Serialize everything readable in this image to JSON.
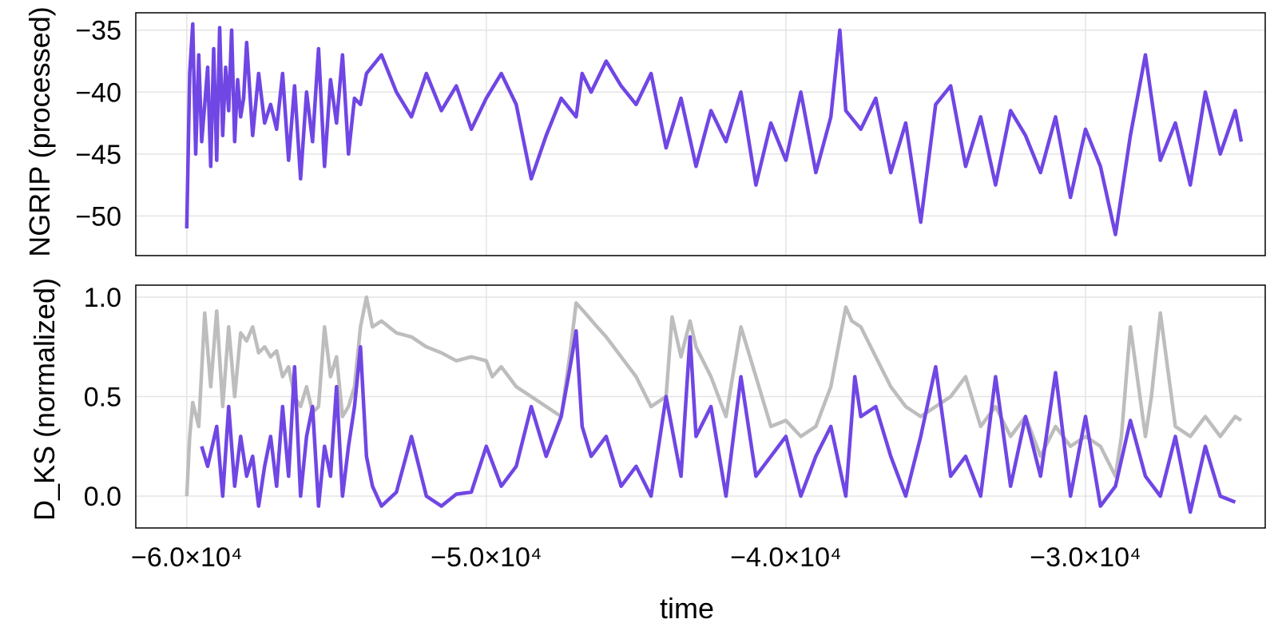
{
  "colors": {
    "primary": "#7046e4",
    "secondary": "#bdbdbd",
    "grid": "#e4e4e4"
  },
  "chart_data": [
    {
      "type": "line",
      "ylabel": "NGRIP (processed)",
      "xlim": [
        -61700,
        -24000
      ],
      "ylim": [
        -53.2,
        -33.6
      ],
      "yticks": [
        -50,
        -45,
        -40,
        -35
      ],
      "ytick_labels": [
        "−50",
        "−45",
        "−40",
        "−35"
      ],
      "xticks": [
        -60000,
        -50000,
        -40000,
        -30000
      ],
      "grid": true,
      "series": [
        {
          "color": "#7046e4",
          "x": [
            -60000,
            -59900,
            -59800,
            -59700,
            -59600,
            -59500,
            -59400,
            -59300,
            -59200,
            -59100,
            -59000,
            -58900,
            -58800,
            -58700,
            -58600,
            -58500,
            -58400,
            -58300,
            -58200,
            -58100,
            -58000,
            -57800,
            -57600,
            -57400,
            -57200,
            -57000,
            -56800,
            -56600,
            -56400,
            -56200,
            -56000,
            -55800,
            -55600,
            -55400,
            -55200,
            -55000,
            -54800,
            -54600,
            -54400,
            -54200,
            -54000,
            -53500,
            -53000,
            -52500,
            -52000,
            -51500,
            -51000,
            -50500,
            -50000,
            -49500,
            -49000,
            -48500,
            -48000,
            -47500,
            -47000,
            -46800,
            -46500,
            -46000,
            -45500,
            -45000,
            -44500,
            -44000,
            -43500,
            -43000,
            -42500,
            -42000,
            -41500,
            -41000,
            -40500,
            -40000,
            -39500,
            -39000,
            -38500,
            -38200,
            -38000,
            -37500,
            -37000,
            -36500,
            -36000,
            -35500,
            -35000,
            -34500,
            -34000,
            -33500,
            -33000,
            -32500,
            -32000,
            -31500,
            -31000,
            -30500,
            -30000,
            -29500,
            -29000,
            -28500,
            -28000,
            -27500,
            -27000,
            -26500,
            -26000,
            -25500,
            -25000,
            -24800
          ],
          "y": [
            -51.0,
            -38.5,
            -34.5,
            -45.0,
            -37.0,
            -44.0,
            -41.0,
            -38.0,
            -46.0,
            -36.5,
            -45.5,
            -34.8,
            -43.5,
            -38.0,
            -41.5,
            -35.0,
            -44.0,
            -39.0,
            -42.0,
            -40.5,
            -36.0,
            -43.5,
            -38.5,
            -42.5,
            -41.0,
            -43.0,
            -38.5,
            -45.5,
            -39.5,
            -47.0,
            -40.0,
            -44.0,
            -36.5,
            -46.0,
            -39.0,
            -42.5,
            -37.0,
            -45.0,
            -40.5,
            -41.0,
            -38.5,
            -37.0,
            -40.0,
            -42.0,
            -38.5,
            -41.5,
            -39.5,
            -43.0,
            -40.5,
            -38.5,
            -41.0,
            -47.0,
            -43.5,
            -40.5,
            -42.0,
            -38.5,
            -40.0,
            -37.5,
            -39.5,
            -41.0,
            -38.5,
            -44.5,
            -40.5,
            -46.0,
            -41.5,
            -44.0,
            -40.0,
            -47.5,
            -42.5,
            -45.5,
            -40.0,
            -46.5,
            -42.0,
            -35.0,
            -41.5,
            -43.0,
            -40.5,
            -46.5,
            -42.5,
            -50.5,
            -41.0,
            -39.5,
            -46.0,
            -42.0,
            -47.5,
            -41.5,
            -43.5,
            -46.5,
            -42.0,
            -48.5,
            -43.0,
            -46.0,
            -51.5,
            -43.5,
            -37.0,
            -45.5,
            -42.5,
            -47.5,
            -40.0,
            -45.0,
            -41.5,
            -44.0
          ]
        }
      ]
    },
    {
      "type": "line",
      "ylabel": "D_KS (normalized)",
      "xlabel": "time",
      "xlim": [
        -61700,
        -24000
      ],
      "ylim": [
        -0.16,
        1.06
      ],
      "yticks": [
        0.0,
        0.5,
        1.0
      ],
      "ytick_labels": [
        "0.0",
        "0.5",
        "1.0"
      ],
      "xticks": [
        -60000,
        -50000,
        -40000,
        -30000
      ],
      "xtick_labels": [
        "−6.0×10⁴",
        "−5.0×10⁴",
        "−4.0×10⁴",
        "−3.0×10⁴"
      ],
      "grid": true,
      "series": [
        {
          "color": "#bdbdbd",
          "x": [
            -60000,
            -59900,
            -59800,
            -59600,
            -59400,
            -59200,
            -59000,
            -58800,
            -58600,
            -58400,
            -58200,
            -58000,
            -57800,
            -57600,
            -57400,
            -57200,
            -57000,
            -56800,
            -56600,
            -56400,
            -56200,
            -56000,
            -55800,
            -55600,
            -55400,
            -55200,
            -55000,
            -54800,
            -54600,
            -54400,
            -54200,
            -54000,
            -53800,
            -53500,
            -53000,
            -52500,
            -52000,
            -51500,
            -51000,
            -50500,
            -50000,
            -49800,
            -49500,
            -49000,
            -48500,
            -48000,
            -47500,
            -47200,
            -47000,
            -46700,
            -46300,
            -46000,
            -45500,
            -45000,
            -44500,
            -44000,
            -43800,
            -43500,
            -43200,
            -43000,
            -42500,
            -42000,
            -41500,
            -41000,
            -40500,
            -40000,
            -39500,
            -39000,
            -38500,
            -38000,
            -37800,
            -37500,
            -37000,
            -36500,
            -36000,
            -35500,
            -35000,
            -34500,
            -34000,
            -33500,
            -33000,
            -32500,
            -32000,
            -31500,
            -31000,
            -30500,
            -30000,
            -29500,
            -29000,
            -28800,
            -28500,
            -28000,
            -27800,
            -27500,
            -27000,
            -26500,
            -26000,
            -25500,
            -25000,
            -24800
          ],
          "y": [
            0.0,
            0.3,
            0.47,
            0.35,
            0.92,
            0.55,
            0.93,
            0.45,
            0.85,
            0.5,
            0.82,
            0.78,
            0.85,
            0.72,
            0.75,
            0.7,
            0.73,
            0.6,
            0.65,
            0.5,
            0.45,
            0.55,
            0.42,
            0.45,
            0.85,
            0.6,
            0.7,
            0.4,
            0.45,
            0.55,
            0.85,
            1.0,
            0.85,
            0.88,
            0.82,
            0.8,
            0.75,
            0.72,
            0.68,
            0.7,
            0.68,
            0.6,
            0.65,
            0.55,
            0.5,
            0.45,
            0.4,
            0.72,
            0.97,
            0.92,
            0.85,
            0.8,
            0.7,
            0.6,
            0.45,
            0.5,
            0.9,
            0.7,
            0.88,
            0.75,
            0.6,
            0.4,
            0.85,
            0.6,
            0.35,
            0.38,
            0.3,
            0.35,
            0.55,
            0.95,
            0.88,
            0.85,
            0.7,
            0.55,
            0.45,
            0.4,
            0.45,
            0.5,
            0.6,
            0.35,
            0.45,
            0.3,
            0.4,
            0.2,
            0.35,
            0.25,
            0.3,
            0.25,
            0.1,
            0.3,
            0.85,
            0.3,
            0.5,
            0.92,
            0.35,
            0.3,
            0.4,
            0.3,
            0.4,
            0.38
          ]
        },
        {
          "color": "#7046e4",
          "x": [
            -59500,
            -59300,
            -59000,
            -58800,
            -58600,
            -58400,
            -58200,
            -58000,
            -57800,
            -57600,
            -57400,
            -57200,
            -57000,
            -56800,
            -56600,
            -56400,
            -56200,
            -56000,
            -55800,
            -55600,
            -55400,
            -55200,
            -55000,
            -54800,
            -54600,
            -54400,
            -54200,
            -54000,
            -53800,
            -53500,
            -53000,
            -52500,
            -52000,
            -51500,
            -51000,
            -50500,
            -50000,
            -49500,
            -49000,
            -48500,
            -48000,
            -47500,
            -47200,
            -47000,
            -46800,
            -46500,
            -46000,
            -45500,
            -45000,
            -44500,
            -44000,
            -43500,
            -43200,
            -43000,
            -42500,
            -42000,
            -41500,
            -41000,
            -40500,
            -40000,
            -39500,
            -39000,
            -38500,
            -38000,
            -37700,
            -37500,
            -37000,
            -36500,
            -36000,
            -35500,
            -35000,
            -34500,
            -34000,
            -33500,
            -33000,
            -32500,
            -32000,
            -31500,
            -31000,
            -30500,
            -30000,
            -29500,
            -29000,
            -28500,
            -28000,
            -27500,
            -27000,
            -26500,
            -26000,
            -25500,
            -25000
          ],
          "y": [
            0.25,
            0.15,
            0.35,
            0.0,
            0.45,
            0.05,
            0.3,
            0.1,
            0.2,
            -0.05,
            0.15,
            0.3,
            0.05,
            0.45,
            0.1,
            0.65,
            0.0,
            0.3,
            0.45,
            -0.05,
            0.25,
            0.1,
            0.55,
            0.0,
            0.25,
            0.45,
            0.75,
            0.2,
            0.05,
            -0.05,
            0.02,
            0.3,
            0.0,
            -0.05,
            0.01,
            0.02,
            0.25,
            0.05,
            0.15,
            0.45,
            0.2,
            0.4,
            0.65,
            0.83,
            0.35,
            0.2,
            0.3,
            0.05,
            0.15,
            0.0,
            0.5,
            0.1,
            0.8,
            0.3,
            0.45,
            0.0,
            0.6,
            0.1,
            0.2,
            0.3,
            0.0,
            0.2,
            0.35,
            0.0,
            0.6,
            0.4,
            0.45,
            0.2,
            0.0,
            0.3,
            0.65,
            0.1,
            0.2,
            0.0,
            0.6,
            0.05,
            0.4,
            0.1,
            0.62,
            0.0,
            0.4,
            -0.05,
            0.05,
            0.38,
            0.1,
            0.0,
            0.3,
            -0.08,
            0.25,
            0.0,
            -0.03
          ]
        }
      ]
    }
  ]
}
